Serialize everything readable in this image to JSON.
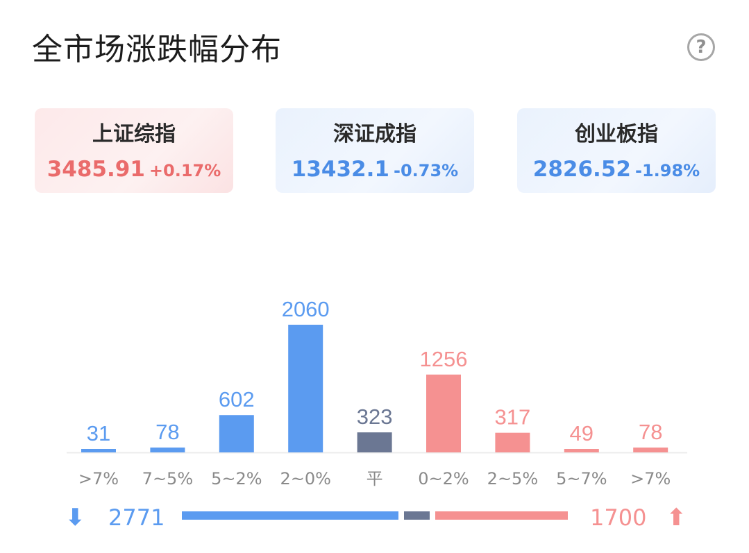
{
  "header": {
    "title": "全市场涨跌幅分布",
    "help_icon": "?"
  },
  "colors": {
    "down": "#5b9bf0",
    "flat": "#6b7793",
    "up": "#f59191",
    "up_text": "#ea6b6b",
    "down_text": "#4a8ce6"
  },
  "indices": [
    {
      "name": "上证综指",
      "value": "3485.91",
      "change": "+0.17%",
      "trend": "up"
    },
    {
      "name": "深证成指",
      "value": "13432.1",
      "change": "-0.73%",
      "trend": "down"
    },
    {
      "name": "创业板指",
      "value": "2826.52",
      "change": "-1.98%",
      "trend": "down"
    }
  ],
  "chart_data": {
    "type": "bar",
    "categories": [
      ">7%",
      "7~5%",
      "5~2%",
      "2~0%",
      "平",
      "0~2%",
      "2~5%",
      "5~7%",
      ">7%"
    ],
    "values": [
      31,
      78,
      602,
      2060,
      323,
      1256,
      317,
      49,
      78
    ],
    "groups": [
      "down",
      "down",
      "down",
      "down",
      "flat",
      "up",
      "up",
      "up",
      "up"
    ],
    "title": "",
    "xlabel": "",
    "ylabel": "",
    "grid": false,
    "legend": "none"
  },
  "summary": {
    "down_count": "2771",
    "up_count": "1700",
    "flat_count": 323,
    "down_arrow": "⬇",
    "up_arrow": "⬆"
  }
}
